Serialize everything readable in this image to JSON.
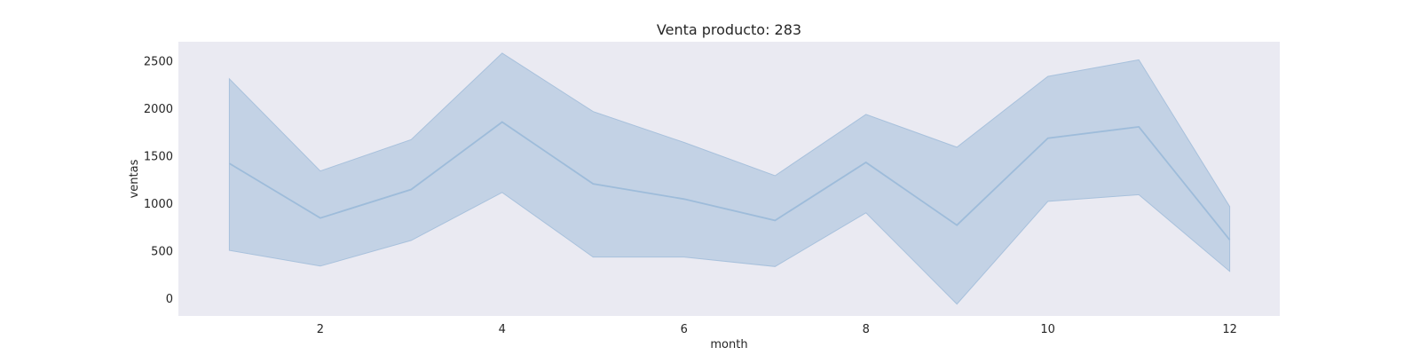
{
  "chart_data": {
    "type": "area",
    "title": "Venta producto: 283",
    "xlabel": "month",
    "ylabel": "ventas",
    "x": [
      1,
      2,
      3,
      4,
      5,
      6,
      7,
      8,
      9,
      10,
      11,
      12
    ],
    "series": [
      {
        "values": [
          1420,
          845,
          1145,
          1855,
          1205,
          1045,
          820,
          1430,
          770,
          1685,
          1805,
          615
        ],
        "band_lower": [
          505,
          340,
          610,
          1115,
          435,
          435,
          335,
          900,
          -60,
          1020,
          1090,
          285
        ],
        "band_upper": [
          2310,
          1340,
          1670,
          2580,
          1965,
          1640,
          1290,
          1935,
          1590,
          2335,
          2510,
          965
        ]
      }
    ],
    "xlim": [
      0.44,
      12.55
    ],
    "ylim": [
      -185,
      2700
    ],
    "xticks": [
      2,
      4,
      6,
      8,
      10,
      12
    ],
    "yticks": [
      0,
      500,
      1000,
      1500,
      2000,
      2500
    ],
    "grid": false,
    "colors": {
      "plot_background": "#eaeaf2",
      "line": "#9ebcda",
      "band_fill": "#a8c1dc",
      "text": "#262626"
    }
  }
}
